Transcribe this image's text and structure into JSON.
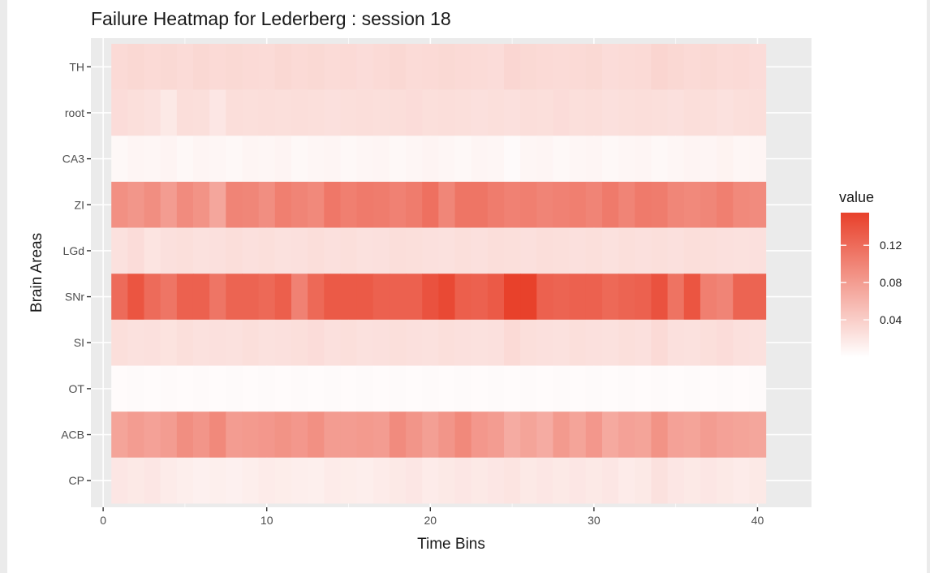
{
  "chart_data": {
    "type": "heatmap",
    "title": "Failure Heatmap for Lederberg : session 18",
    "xlabel": "Time Bins",
    "ylabel": "Brain Areas",
    "x": [
      1,
      2,
      3,
      4,
      5,
      6,
      7,
      8,
      9,
      10,
      11,
      12,
      13,
      14,
      15,
      16,
      17,
      18,
      19,
      20,
      21,
      22,
      23,
      24,
      25,
      26,
      27,
      28,
      29,
      30,
      31,
      32,
      33,
      34,
      35,
      36,
      37,
      38,
      39,
      40
    ],
    "xlim": [
      0.5,
      40.5
    ],
    "x_ticks": [
      0,
      10,
      20,
      30,
      40
    ],
    "x_tick_labels": [
      "0",
      "10",
      "20",
      "30",
      "40"
    ],
    "y_categories": [
      "TH",
      "root",
      "CA3",
      "ZI",
      "LGd",
      "SNr",
      "SI",
      "OT",
      "ACB",
      "CP"
    ],
    "legend": {
      "title": "value",
      "position": "right",
      "breaks": [
        0.04,
        0.08,
        0.12
      ],
      "break_labels": [
        "0.04",
        "0.08",
        "0.12"
      ],
      "range": [
        0.0,
        0.155
      ],
      "low_color": "#ffffff",
      "high_color": "#e8402a"
    },
    "grid": true,
    "panel_background": "#ebebeb",
    "gridline_color": "#ffffff",
    "rows": [
      {
        "area": "TH",
        "values": [
          0.03,
          0.032,
          0.03,
          0.031,
          0.029,
          0.032,
          0.03,
          0.031,
          0.03,
          0.029,
          0.032,
          0.03,
          0.031,
          0.029,
          0.03,
          0.028,
          0.03,
          0.032,
          0.029,
          0.03,
          0.031,
          0.03,
          0.029,
          0.028,
          0.033,
          0.031,
          0.03,
          0.029,
          0.03,
          0.031,
          0.028,
          0.029,
          0.03,
          0.034,
          0.032,
          0.03,
          0.031,
          0.029,
          0.03,
          0.028
        ]
      },
      {
        "area": "root",
        "values": [
          0.028,
          0.026,
          0.024,
          0.018,
          0.027,
          0.026,
          0.02,
          0.027,
          0.026,
          0.027,
          0.026,
          0.027,
          0.026,
          0.025,
          0.026,
          0.027,
          0.026,
          0.027,
          0.028,
          0.026,
          0.027,
          0.026,
          0.025,
          0.026,
          0.025,
          0.027,
          0.026,
          0.028,
          0.026,
          0.027,
          0.025,
          0.026,
          0.027,
          0.026,
          0.025,
          0.027,
          0.026,
          0.024,
          0.026,
          0.027
        ]
      },
      {
        "area": "CA3",
        "values": [
          0.006,
          0.008,
          0.007,
          0.009,
          0.006,
          0.008,
          0.007,
          0.006,
          0.008,
          0.007,
          0.009,
          0.006,
          0.007,
          0.008,
          0.006,
          0.007,
          0.008,
          0.006,
          0.007,
          0.009,
          0.007,
          0.006,
          0.008,
          0.007,
          0.004,
          0.007,
          0.008,
          0.006,
          0.007,
          0.008,
          0.006,
          0.007,
          0.008,
          0.006,
          0.007,
          0.009,
          0.008,
          0.01,
          0.007,
          0.008
        ]
      },
      {
        "area": "ZI",
        "values": [
          0.09,
          0.085,
          0.092,
          0.08,
          0.094,
          0.088,
          0.072,
          0.1,
          0.098,
          0.092,
          0.104,
          0.1,
          0.096,
          0.11,
          0.104,
          0.108,
          0.106,
          0.102,
          0.106,
          0.116,
          0.098,
          0.112,
          0.112,
          0.106,
          0.102,
          0.104,
          0.1,
          0.102,
          0.104,
          0.1,
          0.108,
          0.1,
          0.108,
          0.106,
          0.098,
          0.096,
          0.098,
          0.104,
          0.096,
          0.094
        ]
      },
      {
        "area": "LGd",
        "values": [
          0.024,
          0.028,
          0.022,
          0.025,
          0.026,
          0.024,
          0.025,
          0.027,
          0.025,
          0.026,
          0.024,
          0.025,
          0.027,
          0.025,
          0.026,
          0.024,
          0.025,
          0.027,
          0.026,
          0.025,
          0.024,
          0.026,
          0.025,
          0.027,
          0.026,
          0.025,
          0.027,
          0.026,
          0.025,
          0.026,
          0.024,
          0.026,
          0.025,
          0.026,
          0.025,
          0.027,
          0.026,
          0.025,
          0.024,
          0.025
        ]
      },
      {
        "area": "SNr",
        "values": [
          0.12,
          0.138,
          0.12,
          0.112,
          0.128,
          0.128,
          0.112,
          0.126,
          0.126,
          0.122,
          0.13,
          0.102,
          0.122,
          0.134,
          0.134,
          0.134,
          0.128,
          0.128,
          0.128,
          0.14,
          0.148,
          0.13,
          0.128,
          0.134,
          0.154,
          0.154,
          0.128,
          0.126,
          0.128,
          0.128,
          0.122,
          0.126,
          0.128,
          0.14,
          0.114,
          0.138,
          0.104,
          0.1,
          0.126,
          0.126
        ]
      },
      {
        "area": "SI",
        "values": [
          0.026,
          0.024,
          0.025,
          0.023,
          0.026,
          0.024,
          0.025,
          0.024,
          0.026,
          0.024,
          0.025,
          0.026,
          0.028,
          0.025,
          0.026,
          0.024,
          0.025,
          0.026,
          0.025,
          0.024,
          0.026,
          0.025,
          0.024,
          0.025,
          0.03,
          0.026,
          0.025,
          0.024,
          0.026,
          0.025,
          0.024,
          0.026,
          0.025,
          0.03,
          0.025,
          0.024,
          0.026,
          0.028,
          0.025,
          0.024
        ]
      },
      {
        "area": "OT",
        "values": [
          0.003,
          0.004,
          0.003,
          0.004,
          0.003,
          0.004,
          0.003,
          0.004,
          0.003,
          0.004,
          0.003,
          0.004,
          0.003,
          0.004,
          0.003,
          0.004,
          0.003,
          0.004,
          0.003,
          0.004,
          0.003,
          0.004,
          0.003,
          0.004,
          0.003,
          0.004,
          0.003,
          0.004,
          0.003,
          0.004,
          0.003,
          0.004,
          0.003,
          0.004,
          0.003,
          0.004,
          0.003,
          0.004,
          0.003,
          0.004
        ]
      },
      {
        "area": "ACB",
        "values": [
          0.074,
          0.08,
          0.076,
          0.08,
          0.092,
          0.086,
          0.096,
          0.08,
          0.082,
          0.084,
          0.088,
          0.084,
          0.09,
          0.08,
          0.08,
          0.082,
          0.08,
          0.094,
          0.086,
          0.078,
          0.086,
          0.096,
          0.084,
          0.08,
          0.068,
          0.074,
          0.068,
          0.082,
          0.074,
          0.084,
          0.07,
          0.076,
          0.074,
          0.088,
          0.076,
          0.074,
          0.08,
          0.076,
          0.074,
          0.072
        ]
      },
      {
        "area": "CP",
        "values": [
          0.02,
          0.018,
          0.02,
          0.016,
          0.014,
          0.012,
          0.013,
          0.012,
          0.014,
          0.016,
          0.015,
          0.014,
          0.013,
          0.016,
          0.015,
          0.014,
          0.016,
          0.018,
          0.02,
          0.016,
          0.018,
          0.02,
          0.018,
          0.02,
          0.022,
          0.018,
          0.02,
          0.018,
          0.02,
          0.018,
          0.02,
          0.016,
          0.018,
          0.024,
          0.02,
          0.018,
          0.02,
          0.018,
          0.016,
          0.018
        ]
      }
    ]
  }
}
